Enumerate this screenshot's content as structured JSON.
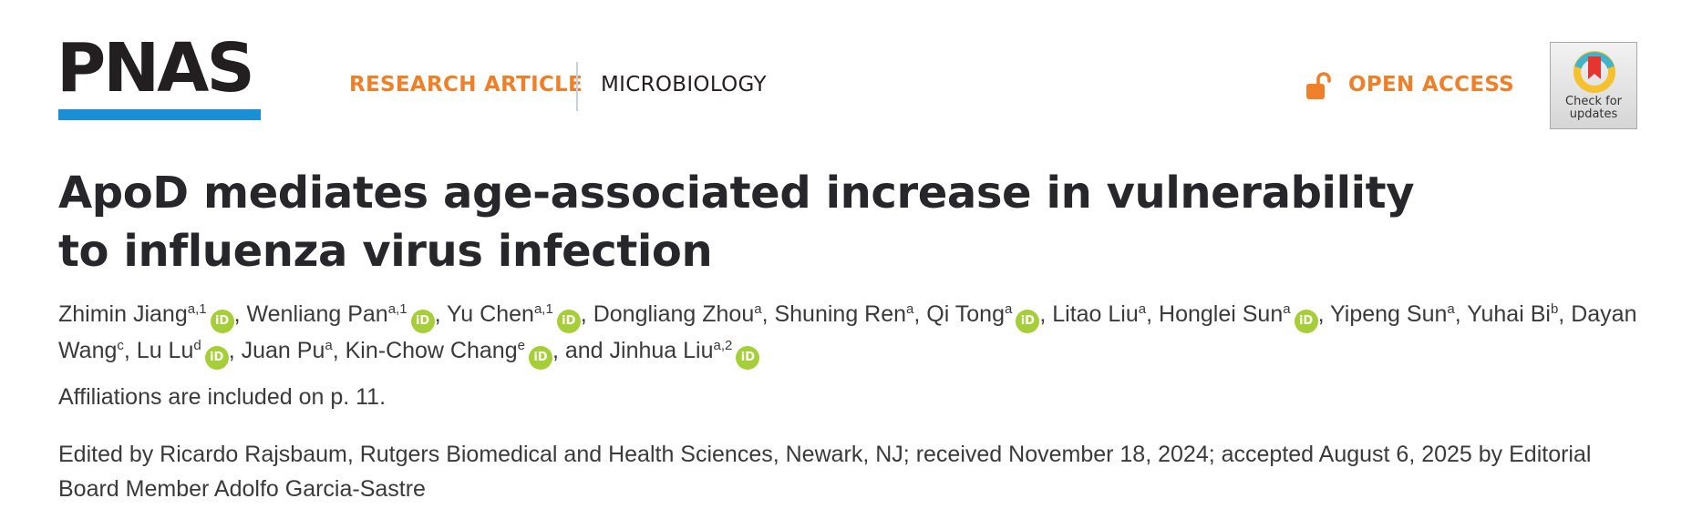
{
  "header": {
    "logo_text": "PNAS",
    "article_type": "RESEARCH ARTICLE",
    "subject": "MICROBIOLOGY",
    "open_access": "OPEN ACCESS",
    "check_updates_line1": "Check for",
    "check_updates_line2": "updates"
  },
  "title_line1": "ApoD mediates age-associated increase in vulnerability",
  "title_line2": "to influenza virus infection",
  "authors": [
    {
      "name": "Zhimin Jiang",
      "aff": "a,1",
      "orcid": true,
      "sep": ", "
    },
    {
      "name": "Wenliang Pan",
      "aff": "a,1",
      "orcid": true,
      "sep": ", "
    },
    {
      "name": "Yu Chen",
      "aff": "a,1",
      "orcid": true,
      "sep": ", "
    },
    {
      "name": "Dongliang Zhou",
      "aff": "a",
      "orcid": false,
      "sep": ", "
    },
    {
      "name": "Shuning Ren",
      "aff": "a",
      "orcid": false,
      "sep": ", "
    },
    {
      "name": "Qi Tong",
      "aff": "a",
      "orcid": true,
      "sep": ", "
    },
    {
      "name": "Litao Liu",
      "aff": "a",
      "orcid": false,
      "sep": ", "
    },
    {
      "name": "Honglei Sun",
      "aff": "a",
      "orcid": true,
      "sep": ", "
    },
    {
      "name": "Yipeng Sun",
      "aff": "a",
      "orcid": false,
      "sep": ", "
    },
    {
      "name": "Yuhai Bi",
      "aff": "b",
      "orcid": false,
      "sep": ", "
    },
    {
      "name": "Dayan Wang",
      "aff": "c",
      "orcid": false,
      "sep": ", "
    },
    {
      "name": "Lu Lu",
      "aff": "d",
      "orcid": true,
      "sep": ", "
    },
    {
      "name": "Juan Pu",
      "aff": "a",
      "orcid": false,
      "sep": ", "
    },
    {
      "name": "Kin-Chow Chang",
      "aff": "e",
      "orcid": true,
      "sep": ", and "
    },
    {
      "name": "Jinhua Liu",
      "aff": "a,2",
      "orcid": true,
      "sep": ""
    }
  ],
  "orcid_label": "iD",
  "affiliations_note": "Affiliations are included on p. 11.",
  "edited_by": "Edited by Ricardo Rajsbaum, Rutgers Biomedical and Health Sciences, Newark, NJ; received November 18, 2024; accepted August 6, 2025 by Editorial Board Member Adolfo Garcia-Sastre",
  "colors": {
    "accent_orange": "#f07f2a",
    "logo_blue": "#1a8fd6",
    "orcid_green": "#a6ce39",
    "title_dark": "#26262b"
  }
}
